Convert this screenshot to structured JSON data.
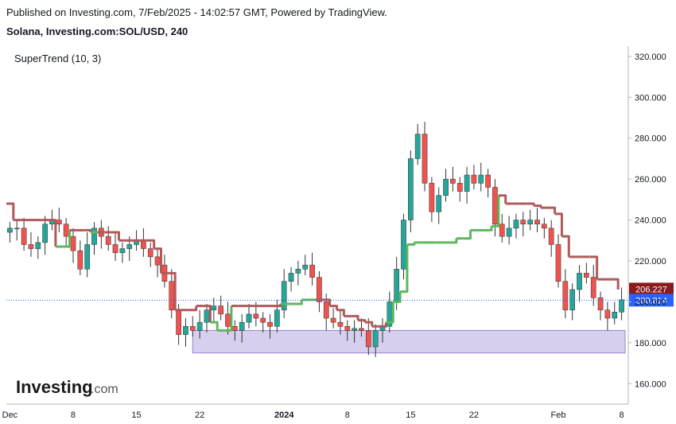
{
  "header": {
    "published": "Published on Investing.com, 7/Feb/2025 - 14:02:57 GMT, Powered by TradingView.",
    "symbol": "Solana, Investing.com:SOL/USD, 240"
  },
  "indicator": {
    "label": "SuperTrend (10, 3)"
  },
  "logo": {
    "main": "Investing",
    "sub": ".com"
  },
  "colors": {
    "up_candle": "#26a69a",
    "down_candle": "#ef5350",
    "supertrend_up": "#5cb85c",
    "supertrend_down": "#b05a5a",
    "zone_fill": "#d6d0ee",
    "zone_stroke": "#9b7fcf",
    "current_price_line": "#2962ff",
    "label_resistance": "#8b1a1a",
    "label_price": "#2962ff"
  },
  "chart_data": {
    "type": "line",
    "ylim": [
      150,
      325
    ],
    "y_ticks": [
      "160.000",
      "180.000",
      "200.000",
      "220.000",
      "240.000",
      "260.000",
      "280.000",
      "300.000",
      "320.000"
    ],
    "y_tick_values": [
      160,
      180,
      200,
      220,
      240,
      260,
      280,
      300,
      320
    ],
    "x_ticks": [
      "Dec",
      "8",
      "15",
      "22",
      "2024",
      "8",
      "15",
      "22",
      "Feb",
      "8"
    ],
    "x_tick_index": [
      0,
      9,
      18,
      27,
      39,
      48,
      57,
      66,
      78,
      87
    ],
    "bar_count": 88,
    "close": [
      236,
      236,
      228,
      226,
      229,
      238,
      240,
      238,
      232,
      225,
      216,
      228,
      236,
      232,
      228,
      224,
      226,
      228,
      230,
      226,
      222,
      218,
      210,
      196,
      184,
      188,
      186,
      190,
      196,
      198,
      194,
      188,
      186,
      190,
      194,
      192,
      190,
      188,
      196,
      210,
      214,
      216,
      218,
      212,
      200,
      192,
      190,
      188,
      186,
      187,
      186,
      178,
      186,
      188,
      200,
      216,
      240,
      270,
      282,
      258,
      244,
      252,
      260,
      258,
      254,
      262,
      258,
      262,
      256,
      238,
      232,
      236,
      240,
      238,
      240,
      238,
      236,
      228,
      210,
      196,
      206,
      214,
      212,
      202,
      196,
      192,
      195,
      201
    ],
    "series": [
      {
        "name": "SuperTrend (10, 3)",
        "values": [
          248,
          240,
          240,
          240,
          240,
          240,
          240,
          227,
          227,
          235,
          235,
          235,
          234,
          234,
          234,
          234,
          230,
          230,
          230,
          230,
          230,
          226,
          214,
          214,
          196,
          196,
          196,
          198,
          198,
          190,
          186,
          186,
          198,
          198,
          198,
          198,
          198,
          198,
          198,
          199,
          199,
          199,
          201,
          201,
          201,
          201,
          198,
          196,
          193,
          193,
          191,
          190,
          188,
          188,
          190,
          200,
          205,
          228,
          229,
          229,
          229,
          229,
          229,
          229,
          231,
          231,
          235,
          235,
          235,
          237,
          252,
          248,
          248,
          248,
          248,
          247,
          246,
          246,
          243,
          232,
          222,
          222,
          222,
          222,
          211,
          211,
          211,
          206
        ]
      }
    ],
    "zone": {
      "low": 175,
      "high": 186
    },
    "current_price": 200.814,
    "current_price_label": "200.814",
    "resistance_value": 206.227,
    "resistance_label": "206.227"
  }
}
